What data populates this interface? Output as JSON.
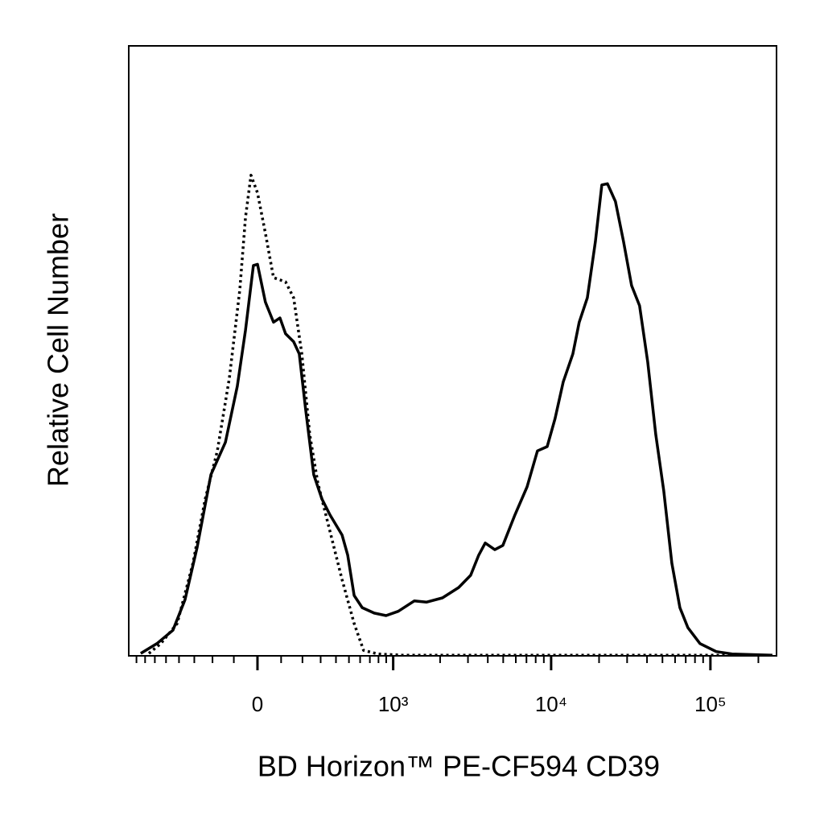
{
  "chart_data": {
    "type": "line",
    "x_label": "BD Horizon™ PE-CF594 CD39",
    "y_label": "Relative Cell Number",
    "x_scale": "biexponential",
    "xlim": [
      -900,
      260000
    ],
    "ylim": [
      0,
      100
    ],
    "xticks": [
      0,
      {
        "value": 1000,
        "label": "10³"
      },
      {
        "value": 10000,
        "label": "10⁴"
      },
      {
        "value": 100000,
        "label": "10⁵"
      }
    ],
    "xminorticks": [
      -800,
      -700,
      -600,
      -500,
      -400,
      -300,
      -200,
      -100,
      100,
      200,
      300,
      400,
      500,
      600,
      700,
      800,
      900,
      2000,
      3000,
      4000,
      5000,
      6000,
      7000,
      8000,
      9000,
      20000,
      30000,
      40000,
      50000,
      60000,
      70000,
      80000,
      90000,
      200000
    ],
    "grid": false,
    "series": [
      {
        "color": "#000000",
        "line_style": "solid",
        "x": [
          -749,
          -580,
          -445,
          -359,
          -283,
          -208,
          -138,
          -85,
          -50,
          -17,
          0,
          33,
          67,
          95,
          120,
          157,
          184,
          217,
          260,
          308,
          359,
          445,
          490,
          545,
          620,
          749,
          898,
          1079,
          1369,
          1636,
          2069,
          2620,
          3120,
          3507,
          3852,
          4428,
          4977,
          5924,
          7060,
          8208,
          9442,
          10590,
          11910,
          13690,
          15010,
          16880,
          18970,
          20810,
          22590,
          25340,
          28500,
          32000,
          35930,
          40410,
          45350,
          50940,
          57230,
          64350,
          72240,
          85990,
          108600,
          136800,
          245100
        ],
        "values": [
          0.4,
          2.0,
          4.2,
          9.2,
          17.8,
          29.7,
          35.0,
          44.2,
          53.4,
          64.0,
          64.2,
          58.0,
          54.7,
          55.4,
          52.8,
          51.5,
          49.5,
          40.2,
          29.7,
          25.7,
          23.1,
          19.8,
          16.5,
          9.9,
          7.9,
          7.0,
          6.6,
          7.3,
          9.0,
          8.8,
          9.5,
          11.2,
          13.2,
          16.5,
          18.5,
          17.4,
          18.1,
          23.1,
          27.7,
          33.6,
          34.3,
          38.9,
          44.9,
          49.5,
          54.7,
          58.7,
          67.9,
          77.2,
          77.4,
          74.5,
          67.9,
          60.7,
          57.4,
          48.2,
          36.3,
          27.0,
          15.2,
          7.9,
          4.6,
          2.0,
          0.7,
          0.3,
          0.1
        ]
      },
      {
        "color": "#000000",
        "line_style": "dotted",
        "x": [
          -660,
          -545,
          -413,
          -308,
          -238,
          -176,
          -120,
          -74,
          -50,
          -27,
          0,
          33,
          67,
          120,
          157,
          197,
          238,
          283,
          359,
          445,
          545,
          634,
          795,
          1145,
          245100
        ],
        "values": [
          0.4,
          2.0,
          5.3,
          15.2,
          25.7,
          33.6,
          45.5,
          60.0,
          71.9,
          78.8,
          75.9,
          69.3,
          62.0,
          61.3,
          58.7,
          49.5,
          36.3,
          28.4,
          20.4,
          12.5,
          5.3,
          0.9,
          0.3,
          0.1,
          0.1
        ]
      }
    ]
  }
}
